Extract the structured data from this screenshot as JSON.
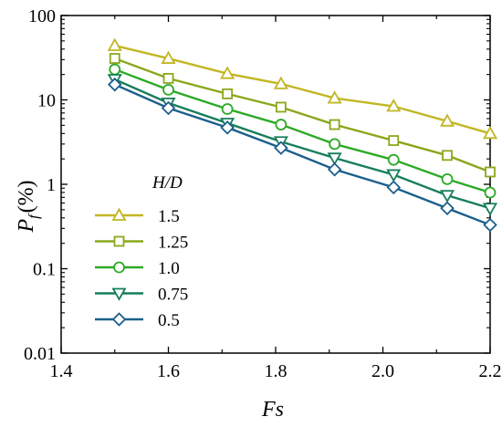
{
  "chart_data": {
    "type": "line",
    "xlabel": "Fs",
    "ylabel_main": "P",
    "ylabel_sub": "f",
    "ylabel_unit": "(%)",
    "xlim": [
      1.4,
      2.2
    ],
    "ylim": [
      0.01,
      100
    ],
    "yscale": "log",
    "grid": false,
    "x_ticks": [
      1.4,
      1.6,
      1.8,
      2.0,
      2.2
    ],
    "x_tick_labels": [
      "1.4",
      "1.6",
      "1.8",
      "2.0",
      "2.2"
    ],
    "y_ticks": [
      0.01,
      0.1,
      1,
      10,
      100
    ],
    "y_tick_labels": [
      "0.01",
      "0.1",
      "1",
      "10",
      "100"
    ],
    "legend_title": "H/D",
    "legend_position": "lower-left",
    "series": [
      {
        "name": "1.5",
        "color": "#c2b624",
        "marker": "triangle-up",
        "x": [
          1.5,
          1.6,
          1.71,
          1.81,
          1.91,
          2.02,
          2.12,
          2.2
        ],
        "y": [
          44,
          31,
          20.5,
          15.5,
          10.5,
          8.4,
          5.6,
          4.0
        ]
      },
      {
        "name": "1.25",
        "color": "#89a81c",
        "marker": "square",
        "x": [
          1.5,
          1.6,
          1.71,
          1.81,
          1.91,
          2.02,
          2.12,
          2.2
        ],
        "y": [
          31,
          18,
          11.8,
          8.2,
          5.1,
          3.3,
          2.2,
          1.4
        ]
      },
      {
        "name": "1.0",
        "color": "#2caa26",
        "marker": "circle",
        "x": [
          1.5,
          1.6,
          1.71,
          1.81,
          1.91,
          2.02,
          2.12,
          2.2
        ],
        "y": [
          23,
          13.2,
          7.8,
          5.1,
          3.0,
          1.95,
          1.15,
          0.8
        ]
      },
      {
        "name": "0.75",
        "color": "#177e5c",
        "marker": "triangle-down",
        "x": [
          1.5,
          1.6,
          1.71,
          1.81,
          1.91,
          2.02,
          2.12,
          2.2
        ],
        "y": [
          17.5,
          9.2,
          5.3,
          3.2,
          2.05,
          1.3,
          0.74,
          0.52
        ]
      },
      {
        "name": "0.5",
        "color": "#1c5f8c",
        "marker": "diamond",
        "x": [
          1.5,
          1.6,
          1.71,
          1.81,
          1.91,
          2.02,
          2.12,
          2.2
        ],
        "y": [
          15.2,
          8.0,
          4.7,
          2.7,
          1.5,
          0.92,
          0.52,
          0.33
        ]
      }
    ]
  }
}
